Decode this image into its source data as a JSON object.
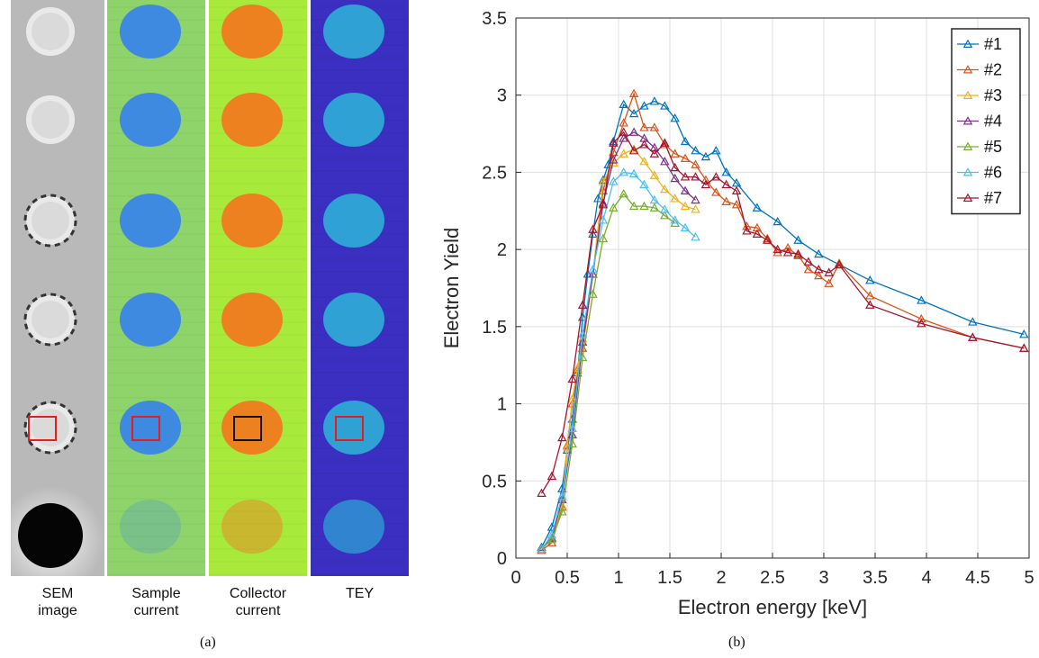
{
  "panel_a": {
    "caption": "(a)",
    "strips": [
      {
        "label_line1": "SEM",
        "label_line2": "image"
      },
      {
        "label_line1": "Sample",
        "label_line2": "current"
      },
      {
        "label_line1": "Collector",
        "label_line2": "current"
      },
      {
        "label_line1": "TEY",
        "label_line2": ""
      }
    ],
    "colors": {
      "sem_bg": "#b9b9b9",
      "sample_bg": "#8fd46a",
      "sample_spot": "#3a86e8",
      "collector_bg": "#a8ea3c",
      "collector_spot": "#f07a1e",
      "tey_bg": "#3a2fc0",
      "tey_spot": "#2ea8d6",
      "marker_red": "#e02020",
      "marker_black": "#111111"
    }
  },
  "panel_b": {
    "caption": "(b)"
  },
  "chart_data": {
    "type": "line",
    "xlabel": "Electron energy [keV]",
    "ylabel": "Electron Yield",
    "xlim": [
      0,
      5
    ],
    "ylim": [
      0,
      3.5
    ],
    "xticks": [
      "0",
      "0.5",
      "1",
      "1.5",
      "2",
      "2.5",
      "3",
      "3.5",
      "4",
      "4.5",
      "5"
    ],
    "yticks": [
      "0",
      "0.5",
      "1",
      "1.5",
      "2",
      "2.5",
      "3",
      "3.5"
    ],
    "grid": true,
    "legend_position": "top-right",
    "marker": "triangle",
    "series": [
      {
        "name": "#1",
        "color": "#0072BD",
        "x": [
          0.25,
          0.35,
          0.45,
          0.5,
          0.55,
          0.6,
          0.65,
          0.7,
          0.75,
          0.8,
          0.85,
          0.9,
          0.95,
          1.05,
          1.15,
          1.25,
          1.35,
          1.45,
          1.55,
          1.65,
          1.75,
          1.85,
          1.95,
          2.05,
          2.15,
          2.35,
          2.55,
          2.75,
          2.95,
          3.45,
          3.95,
          4.45,
          4.95
        ],
        "y": [
          0.07,
          0.2,
          0.45,
          0.7,
          0.9,
          1.2,
          1.56,
          1.84,
          2.1,
          2.33,
          2.45,
          2.55,
          2.7,
          2.94,
          2.88,
          2.93,
          2.96,
          2.93,
          2.85,
          2.7,
          2.64,
          2.6,
          2.64,
          2.5,
          2.43,
          2.27,
          2.18,
          2.06,
          1.97,
          1.8,
          1.67,
          1.53,
          1.45
        ]
      },
      {
        "name": "#2",
        "color": "#D95319",
        "x": [
          0.25,
          0.35,
          0.45,
          0.5,
          0.55,
          0.6,
          0.65,
          0.75,
          0.85,
          0.95,
          1.05,
          1.15,
          1.25,
          1.35,
          1.45,
          1.55,
          1.65,
          1.75,
          1.85,
          1.95,
          2.05,
          2.15,
          2.25,
          2.35,
          2.45,
          2.55,
          2.65,
          2.75,
          2.85,
          2.95,
          3.05,
          3.15,
          3.45,
          3.95,
          4.45,
          4.95
        ],
        "y": [
          0.05,
          0.1,
          0.33,
          0.73,
          1.0,
          1.22,
          1.36,
          1.84,
          2.38,
          2.63,
          2.82,
          3.01,
          2.79,
          2.79,
          2.68,
          2.62,
          2.59,
          2.55,
          2.45,
          2.37,
          2.31,
          2.29,
          2.15,
          2.14,
          2.07,
          1.98,
          2.01,
          1.96,
          1.87,
          1.83,
          1.78,
          1.91,
          1.7,
          1.55,
          1.43,
          1.36
        ]
      },
      {
        "name": "#3",
        "color": "#EDB120",
        "x": [
          0.25,
          0.35,
          0.45,
          0.5,
          0.55,
          0.6,
          0.65,
          0.75,
          0.85,
          0.95,
          1.05,
          1.15,
          1.25,
          1.35,
          1.45,
          1.55,
          1.65,
          1.75
        ],
        "y": [
          0.06,
          0.13,
          0.34,
          0.72,
          1.03,
          1.23,
          1.42,
          1.84,
          2.44,
          2.56,
          2.62,
          2.65,
          2.57,
          2.48,
          2.39,
          2.33,
          2.28,
          2.26
        ]
      },
      {
        "name": "#4",
        "color": "#7E2F8E",
        "x": [
          0.25,
          0.35,
          0.45,
          0.55,
          0.65,
          0.75,
          0.85,
          0.95,
          1.05,
          1.15,
          1.25,
          1.35,
          1.45,
          1.55,
          1.65,
          1.75
        ],
        "y": [
          0.06,
          0.13,
          0.38,
          0.8,
          1.4,
          1.84,
          2.3,
          2.58,
          2.72,
          2.76,
          2.72,
          2.66,
          2.57,
          2.46,
          2.38,
          2.32
        ]
      },
      {
        "name": "#5",
        "color": "#77AC30",
        "x": [
          0.25,
          0.35,
          0.45,
          0.55,
          0.65,
          0.75,
          0.85,
          0.95,
          1.05,
          1.15,
          1.25,
          1.35,
          1.45,
          1.55
        ],
        "y": [
          0.06,
          0.12,
          0.3,
          0.74,
          1.3,
          1.71,
          2.07,
          2.27,
          2.36,
          2.28,
          2.28,
          2.27,
          2.22,
          2.17
        ]
      },
      {
        "name": "#6",
        "color": "#4DBEEE",
        "x": [
          0.25,
          0.35,
          0.45,
          0.55,
          0.65,
          0.75,
          0.85,
          0.95,
          1.05,
          1.15,
          1.25,
          1.35,
          1.45,
          1.55,
          1.65,
          1.75
        ],
        "y": [
          0.06,
          0.15,
          0.4,
          0.84,
          1.45,
          1.87,
          2.19,
          2.44,
          2.5,
          2.49,
          2.42,
          2.32,
          2.26,
          2.19,
          2.14,
          2.08
        ]
      },
      {
        "name": "#7",
        "color": "#A2142F",
        "x": [
          0.25,
          0.35,
          0.45,
          0.55,
          0.65,
          0.75,
          0.85,
          0.95,
          1.05,
          1.15,
          1.25,
          1.35,
          1.45,
          1.55,
          1.65,
          1.75,
          1.85,
          1.95,
          2.05,
          2.15,
          2.25,
          2.35,
          2.45,
          2.55,
          2.65,
          2.75,
          2.85,
          2.95,
          3.05,
          3.15,
          3.45,
          3.95,
          4.45,
          4.95
        ],
        "y": [
          0.42,
          0.53,
          0.78,
          1.16,
          1.64,
          2.13,
          2.29,
          2.69,
          2.76,
          2.64,
          2.68,
          2.62,
          2.69,
          2.53,
          2.47,
          2.47,
          2.42,
          2.47,
          2.42,
          2.38,
          2.12,
          2.1,
          2.06,
          2.0,
          1.98,
          1.97,
          1.92,
          1.87,
          1.85,
          1.9,
          1.64,
          1.52,
          1.43,
          1.36
        ]
      }
    ]
  }
}
